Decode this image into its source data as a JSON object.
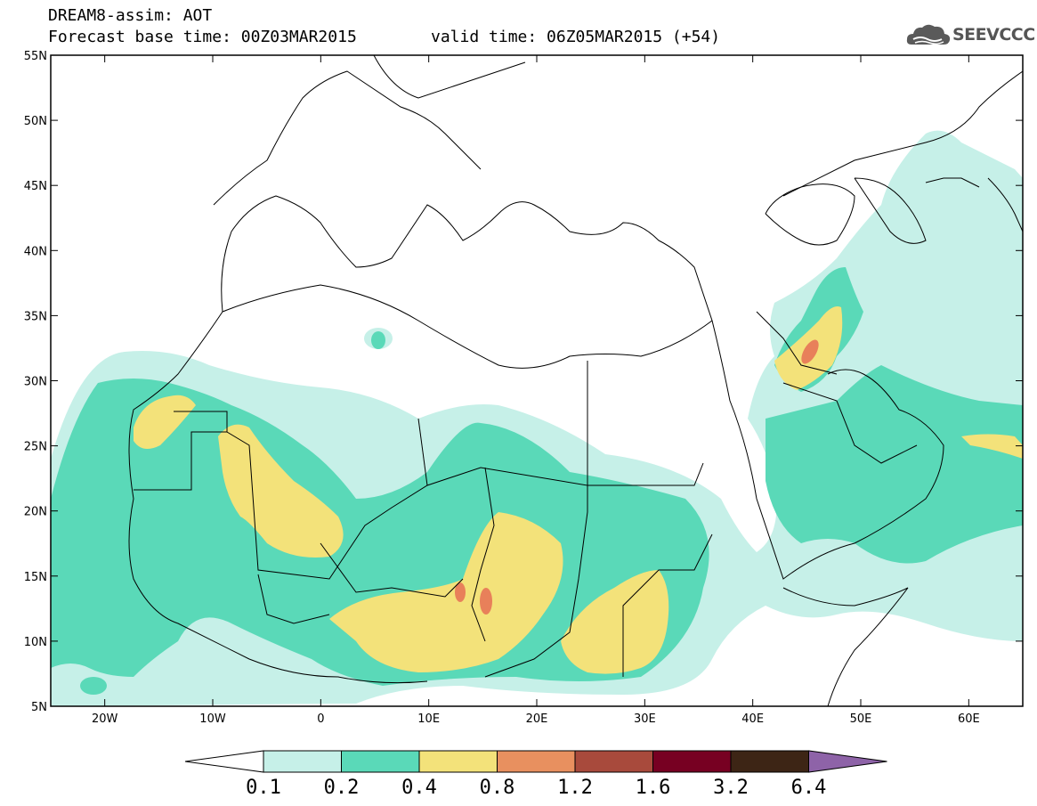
{
  "header": {
    "title": "DREAM8-assim: AOT",
    "forecast_base": "Forecast base time: 00Z03MAR2015",
    "valid_time": "valid time: 06Z05MAR2015 (+54)",
    "logo_text": "SEEVCCC",
    "logo_icon": "cloud-icon"
  },
  "map": {
    "lon_range": [
      -25,
      65
    ],
    "lat_range": [
      5,
      55
    ],
    "lat_labels": [
      "55N",
      "50N",
      "45N",
      "40N",
      "35N",
      "30N",
      "25N",
      "20N",
      "15N",
      "10N",
      "5N"
    ],
    "lon_labels": [
      "20W",
      "10W",
      "0",
      "10E",
      "20E",
      "30E",
      "40E",
      "50E",
      "60E"
    ],
    "colors": {
      "0.1-0.2": "#c6f0e8",
      "0.2-0.4": "#5ad9b8",
      "0.4-0.8": "#f3e27a",
      "0.8-1.2": "#e8805a",
      "1.2-1.6": "#a8483a"
    }
  },
  "colorbar": {
    "labels": [
      "0.1",
      "0.2",
      "0.4",
      "0.8",
      "1.2",
      "1.6",
      "3.2",
      "6.4"
    ],
    "colors": [
      "#c6f0e8",
      "#5ad9b8",
      "#f3e27a",
      "#e8905f",
      "#a84a3c",
      "#770022",
      "#3d2515"
    ],
    "low_extend_color": "#ffffff",
    "high_extend_color": "#8e63a8"
  }
}
